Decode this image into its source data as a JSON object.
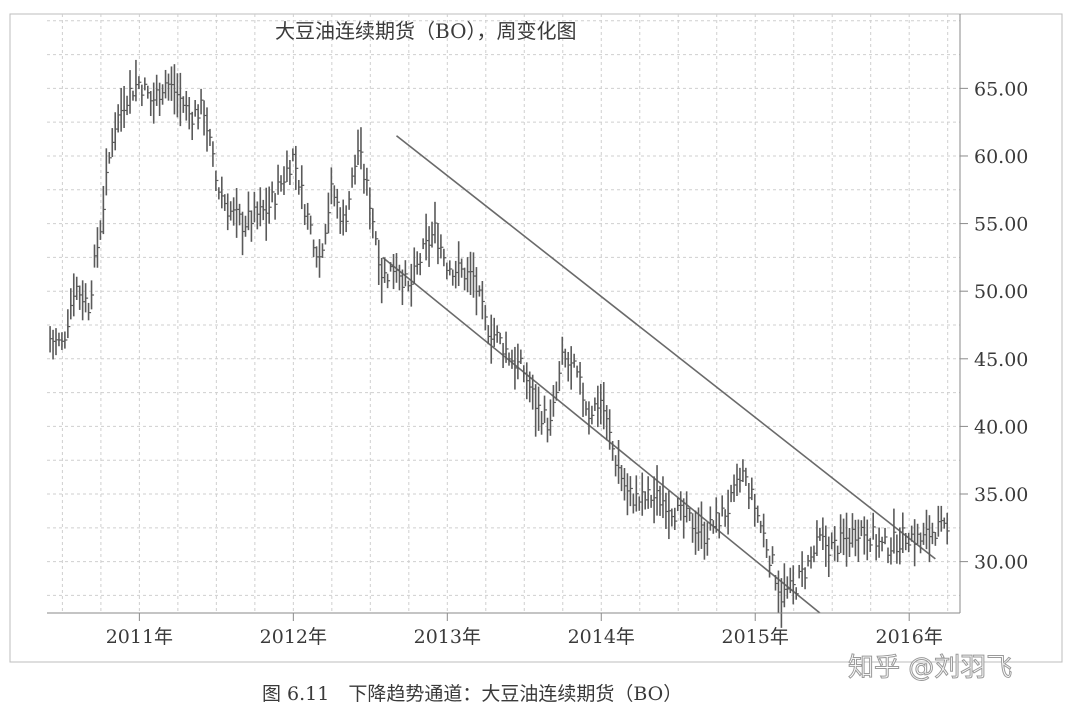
{
  "chart_data": {
    "type": "line",
    "title": "大豆油连续期货（BO），周变化图",
    "xlabel": "",
    "ylabel": "",
    "ylim": [
      26.2,
      70.5
    ],
    "yticks": [
      "65.00",
      "60.00",
      "55.00",
      "50.00",
      "45.00",
      "40.00",
      "35.00",
      "30.00"
    ],
    "ytick_values": [
      65,
      60,
      55,
      50,
      45,
      40,
      35,
      30
    ],
    "xticks": [
      "2011年",
      "2012年",
      "2013年",
      "2014年",
      "2015年",
      "2016年"
    ],
    "xtick_values": [
      2011.0,
      2012.0,
      2013.0,
      2014.0,
      2015.0,
      2016.0
    ],
    "xlim": [
      2010.4,
      2016.33
    ],
    "grid": true,
    "series": [
      {
        "values_x": [
          2010.42,
          2010.5,
          2010.58,
          2010.67,
          2010.75,
          2010.83,
          2010.92,
          2011.0,
          2011.08,
          2011.17,
          2011.25,
          2011.33,
          2011.42,
          2011.5,
          2011.58,
          2011.67,
          2011.75,
          2011.83,
          2011.92,
          2012.0,
          2012.08,
          2012.17,
          2012.25,
          2012.33,
          2012.42,
          2012.5,
          2012.58,
          2012.67,
          2012.75,
          2012.83,
          2012.92,
          2013.0,
          2013.08,
          2013.17,
          2013.25,
          2013.33,
          2013.42,
          2013.5,
          2013.58,
          2013.67,
          2013.75,
          2013.83,
          2013.92,
          2014.0,
          2014.08,
          2014.17,
          2014.25,
          2014.33,
          2014.42,
          2014.5,
          2014.58,
          2014.67,
          2014.75,
          2014.83,
          2014.92,
          2015.0,
          2015.08,
          2015.17,
          2015.25,
          2015.33,
          2015.42,
          2015.5,
          2015.58,
          2015.67,
          2015.75,
          2015.83,
          2015.92,
          2016.0,
          2016.08,
          2016.17,
          2016.25
        ],
        "values": [
          46.5,
          46.0,
          50.5,
          49.0,
          55.0,
          62.0,
          64.5,
          65.5,
          64.0,
          65.5,
          64.5,
          63.0,
          63.5,
          58.0,
          56.0,
          55.0,
          55.5,
          56.0,
          58.0,
          60.0,
          56.0,
          52.5,
          57.5,
          55.0,
          60.5,
          56.5,
          51.0,
          52.0,
          50.0,
          52.5,
          54.5,
          52.0,
          51.5,
          51.0,
          47.5,
          46.5,
          45.0,
          44.0,
          41.5,
          40.0,
          45.0,
          44.0,
          41.0,
          42.0,
          38.0,
          35.0,
          34.5,
          34.8,
          34.5,
          33.5,
          33.0,
          32.0,
          33.0,
          34.0,
          36.5,
          34.0,
          31.0,
          27.5,
          28.0,
          29.5,
          31.5,
          31.0,
          31.5,
          32.5,
          32.0,
          31.0,
          31.5,
          32.0,
          31.5,
          32.5,
          32.0
        ]
      }
    ],
    "channel_lines": [
      {
        "name": "upper",
        "x": [
          2012.67,
          2016.17
        ],
        "y": [
          61.5,
          30.2
        ]
      },
      {
        "name": "lower",
        "x": [
          2012.58,
          2015.42
        ],
        "y": [
          52.5,
          26.2
        ]
      }
    ]
  },
  "caption": "图 6.11　下降趋势通道：大豆油连续期货（BO）",
  "watermark": "知乎 @刘羽飞",
  "colors": {
    "bars": "#5a5a5a",
    "grid": "#cfcfcf",
    "axis": "#8a8a8a",
    "channel": "#6a6a6a"
  }
}
